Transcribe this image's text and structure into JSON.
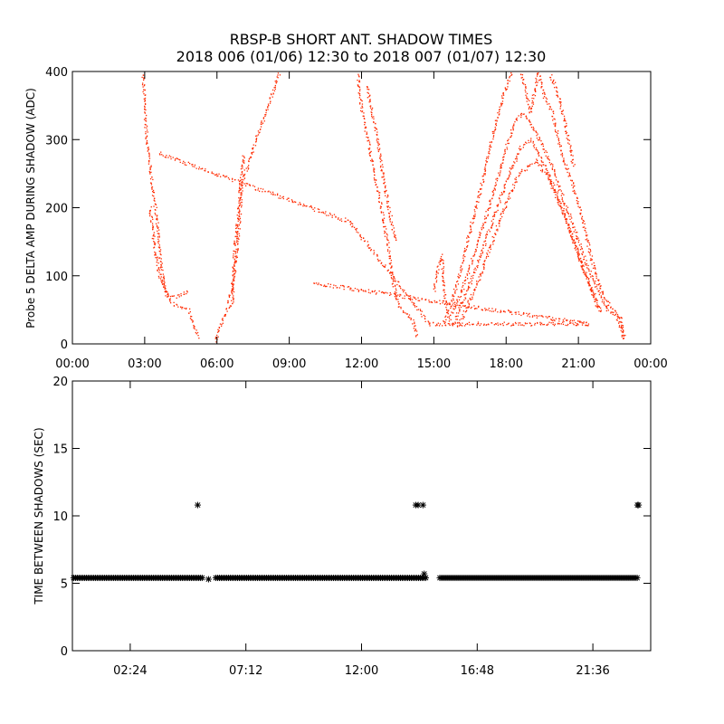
{
  "title": {
    "line1": "RBSP-B SHORT ANT. SHADOW TIMES",
    "line2": "2018 006 (01/06) 12:30 to 2018 007 (01/07) 12:30"
  },
  "colors": {
    "upper_points": "#ff2a00",
    "lower_points": "#000000",
    "axes": "#000000"
  },
  "chart_data": [
    {
      "type": "scatter",
      "ylabel": "Probe 5 DELTA AMP DURING SHADOW (ADC)",
      "xlabel": "",
      "x_unit": "hours",
      "xlim": [
        0,
        24
      ],
      "ylim": [
        0,
        400
      ],
      "x_ticks": [
        {
          "value": 0,
          "label": "00:00"
        },
        {
          "value": 3,
          "label": "03:00"
        },
        {
          "value": 6,
          "label": "06:00"
        },
        {
          "value": 9,
          "label": "09:00"
        },
        {
          "value": 12,
          "label": "12:00"
        },
        {
          "value": 15,
          "label": "15:00"
        },
        {
          "value": 18,
          "label": "18:00"
        },
        {
          "value": 21,
          "label": "21:00"
        },
        {
          "value": 24,
          "label": "00:00"
        }
      ],
      "y_ticks": [
        {
          "value": 0,
          "label": "0"
        },
        {
          "value": 100,
          "label": "100"
        },
        {
          "value": 200,
          "label": "200"
        },
        {
          "value": 300,
          "label": "300"
        },
        {
          "value": 400,
          "label": "400"
        }
      ],
      "grid": false,
      "series": [
        {
          "color": "#ff2a00",
          "marker": "dot",
          "segments": [
            {
              "x": [
                2.9,
                3.05,
                3.3,
                3.5,
                3.65,
                3.8,
                4.1,
                4.5,
                4.8,
                5.0,
                5.2
              ],
              "y": [
                400,
                310,
                230,
                180,
                120,
                80,
                60,
                55,
                50,
                30,
                10
              ]
            },
            {
              "x": [
                3.2,
                3.4,
                3.6,
                3.9,
                4.3,
                4.6,
                4.8
              ],
              "y": [
                200,
                140,
                100,
                75,
                70,
                75,
                80
              ]
            },
            {
              "x": [
                5.9,
                6.05,
                6.3,
                6.6,
                6.7,
                6.85,
                7.0,
                7.3,
                7.6,
                7.9,
                8.2,
                8.6
              ],
              "y": [
                5,
                20,
                45,
                60,
                100,
                150,
                230,
                270,
                300,
                330,
                360,
                400
              ]
            },
            {
              "x": [
                6.4,
                6.6,
                6.7,
                6.9,
                7.1
              ],
              "y": [
                60,
                80,
                130,
                210,
                280
              ]
            },
            {
              "x": [
                11.8,
                12.0,
                12.3,
                12.5,
                12.8,
                13.1,
                13.3,
                13.5,
                13.8,
                14.1,
                14.3
              ],
              "y": [
                400,
                340,
                290,
                250,
                200,
                140,
                90,
                60,
                45,
                35,
                10
              ]
            },
            {
              "x": [
                12.2,
                12.6,
                13.0,
                13.4
              ],
              "y": [
                380,
                310,
                220,
                150
              ]
            },
            {
              "x": [
                15.0,
                15.15,
                15.3,
                15.4,
                15.5
              ],
              "y": [
                80,
                110,
                130,
                90,
                50
              ]
            },
            {
              "x": [
                15.4,
                15.7,
                16.1,
                16.5,
                17.0,
                17.5,
                17.9,
                18.2
              ],
              "y": [
                30,
                60,
                110,
                170,
                240,
                320,
                370,
                400
              ]
            },
            {
              "x": [
                15.6,
                16.2,
                16.9,
                17.5,
                18.0,
                18.4,
                18.7,
                19.1,
                19.5,
                19.9,
                20.3,
                20.8,
                21.3,
                21.8,
                22.2,
                22.6,
                22.9
              ],
              "y": [
                35,
                85,
                160,
                230,
                290,
                330,
                340,
                320,
                290,
                260,
                220,
                170,
                120,
                80,
                50,
                40,
                5
              ]
            },
            {
              "x": [
                15.8,
                16.6,
                17.4,
                18.1,
                18.6,
                19.0,
                19.5,
                20.1,
                20.7,
                21.3,
                21.9
              ],
              "y": [
                30,
                100,
                180,
                250,
                290,
                300,
                270,
                220,
                160,
                100,
                45
              ]
            },
            {
              "x": [
                16.0,
                16.9,
                17.8,
                18.5,
                19.2,
                19.8,
                20.5,
                21.2,
                21.9
              ],
              "y": [
                25,
                100,
                190,
                250,
                270,
                240,
                180,
                110,
                50
              ]
            },
            {
              "x": [
                18.6,
                19.0,
                19.3,
                19.6,
                19.9,
                20.3,
                20.7,
                21.1,
                21.5,
                21.9,
                22.3,
                22.7,
                22.9
              ],
              "y": [
                400,
                340,
                400,
                360,
                340,
                280,
                240,
                190,
                130,
                80,
                55,
                40,
                10
              ]
            },
            {
              "x": [
                19.8,
                20.1,
                20.4,
                20.8
              ],
              "y": [
                400,
                370,
                330,
                260
              ]
            },
            {
              "x": [
                3.6,
                11.5,
                14.8,
                19.4,
                21.4,
                10.0
              ],
              "y": [
                280,
                180,
                30,
                30,
                30,
                90
              ]
            }
          ]
        }
      ]
    },
    {
      "type": "scatter",
      "ylabel": "TIME BETWEEN SHADOWS (SEC)",
      "xlabel": "",
      "x_unit": "hours",
      "xlim": [
        0,
        24
      ],
      "ylim": [
        0,
        20
      ],
      "x_ticks": [
        {
          "value": 2.4,
          "label": "02:24"
        },
        {
          "value": 7.2,
          "label": "07:12"
        },
        {
          "value": 12.0,
          "label": "12:00"
        },
        {
          "value": 16.8,
          "label": "16:48"
        },
        {
          "value": 21.6,
          "label": "21:36"
        }
      ],
      "y_ticks": [
        {
          "value": 0,
          "label": "0"
        },
        {
          "value": 5,
          "label": "5"
        },
        {
          "value": 10,
          "label": "10"
        },
        {
          "value": 15,
          "label": "15"
        },
        {
          "value": 20,
          "label": "20"
        }
      ],
      "grid": false,
      "series": [
        {
          "color": "#000000",
          "marker": "asterisk",
          "dense_runs": [
            {
              "x_start": 0.05,
              "x_end": 5.4,
              "y": 5.4
            },
            {
              "x_start": 5.95,
              "x_end": 14.7,
              "y": 5.4
            },
            {
              "x_start": 15.25,
              "x_end": 23.5,
              "y": 5.4
            }
          ],
          "points": [
            {
              "x": 5.2,
              "y": 10.8
            },
            {
              "x": 5.65,
              "y": 5.3
            },
            {
              "x": 14.25,
              "y": 10.8
            },
            {
              "x": 14.35,
              "y": 10.8
            },
            {
              "x": 14.55,
              "y": 10.8
            },
            {
              "x": 14.6,
              "y": 5.7
            },
            {
              "x": 23.45,
              "y": 10.8
            },
            {
              "x": 23.5,
              "y": 10.8
            }
          ]
        }
      ]
    }
  ]
}
